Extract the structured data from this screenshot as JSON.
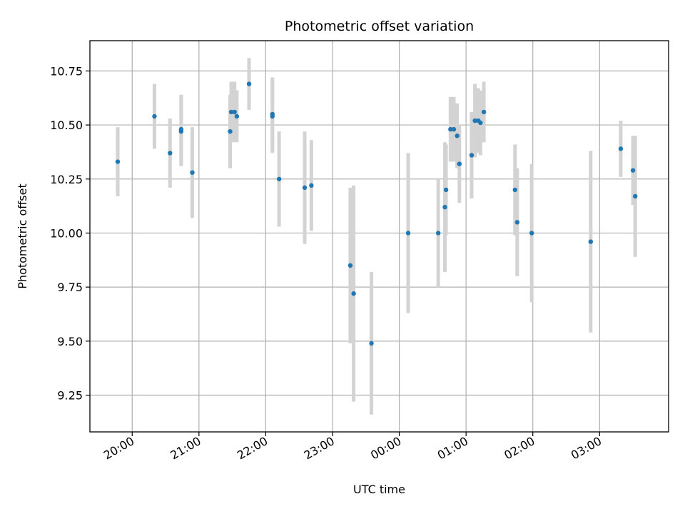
{
  "chart_data": {
    "type": "scatter",
    "title": "Photometric offset variation",
    "xlabel": "UTC time",
    "ylabel": "Photometric offset",
    "grid": true,
    "marker_color": "#1f77b4",
    "errorbar_color": "#d3d3d3",
    "x_ticks": [
      "20:00",
      "21:00",
      "22:00",
      "23:00",
      "00:00",
      "01:00",
      "02:00",
      "03:00"
    ],
    "y_ticks": [
      "9.25",
      "9.50",
      "9.75",
      "10.00",
      "10.25",
      "10.50",
      "10.75"
    ],
    "xlim": [
      "19:22",
      "04:02"
    ],
    "ylim": [
      9.08,
      10.89
    ],
    "series": [
      {
        "points": [
          {
            "x": "19:47",
            "y": 10.33,
            "yerr": 0.16
          },
          {
            "x": "20:20",
            "y": 10.54,
            "yerr": 0.15
          },
          {
            "x": "20:34",
            "y": 10.37,
            "yerr": 0.16
          },
          {
            "x": "20:44",
            "y": 10.48,
            "yerr": 0.16
          },
          {
            "x": "20:44",
            "y": 10.47,
            "yerr": 0.16
          },
          {
            "x": "20:54",
            "y": 10.28,
            "yerr": 0.21
          },
          {
            "x": "21:28",
            "y": 10.47,
            "yerr": 0.17
          },
          {
            "x": "21:29",
            "y": 10.56,
            "yerr": 0.14
          },
          {
            "x": "21:32",
            "y": 10.56,
            "yerr": 0.14
          },
          {
            "x": "21:34",
            "y": 10.54,
            "yerr": 0.12
          },
          {
            "x": "21:45",
            "y": 10.69,
            "yerr": 0.12
          },
          {
            "x": "22:06",
            "y": 10.55,
            "yerr": 0.17
          },
          {
            "x": "22:06",
            "y": 10.54,
            "yerr": 0.17
          },
          {
            "x": "22:12",
            "y": 10.25,
            "yerr": 0.22
          },
          {
            "x": "22:35",
            "y": 10.21,
            "yerr": 0.26
          },
          {
            "x": "22:41",
            "y": 10.22,
            "yerr": 0.21
          },
          {
            "x": "23:16",
            "y": 9.85,
            "yerr": 0.36
          },
          {
            "x": "23:19",
            "y": 9.72,
            "yerr": 0.5
          },
          {
            "x": "23:35",
            "y": 9.49,
            "yerr": 0.33
          },
          {
            "x": "00:08",
            "y": 10.0,
            "yerr": 0.37
          },
          {
            "x": "00:35",
            "y": 10.0,
            "yerr": 0.25
          },
          {
            "x": "00:41",
            "y": 10.12,
            "yerr": 0.3
          },
          {
            "x": "00:42",
            "y": 10.2,
            "yerr": 0.21
          },
          {
            "x": "00:46",
            "y": 10.48,
            "yerr": 0.15
          },
          {
            "x": "00:49",
            "y": 10.48,
            "yerr": 0.15
          },
          {
            "x": "00:52",
            "y": 10.45,
            "yerr": 0.15
          },
          {
            "x": "00:54",
            "y": 10.32,
            "yerr": 0.18
          },
          {
            "x": "01:05",
            "y": 10.36,
            "yerr": 0.2
          },
          {
            "x": "01:08",
            "y": 10.52,
            "yerr": 0.17
          },
          {
            "x": "01:11",
            "y": 10.52,
            "yerr": 0.15
          },
          {
            "x": "01:13",
            "y": 10.51,
            "yerr": 0.15
          },
          {
            "x": "01:16",
            "y": 10.56,
            "yerr": 0.14
          },
          {
            "x": "01:44",
            "y": 10.2,
            "yerr": 0.21
          },
          {
            "x": "01:46",
            "y": 10.05,
            "yerr": 0.25
          },
          {
            "x": "01:59",
            "y": 10.0,
            "yerr": 0.32
          },
          {
            "x": "02:52",
            "y": 9.96,
            "yerr": 0.42
          },
          {
            "x": "03:19",
            "y": 10.39,
            "yerr": 0.13
          },
          {
            "x": "03:30",
            "y": 10.29,
            "yerr": 0.16
          },
          {
            "x": "03:32",
            "y": 10.17,
            "yerr": 0.28
          }
        ]
      }
    ]
  }
}
